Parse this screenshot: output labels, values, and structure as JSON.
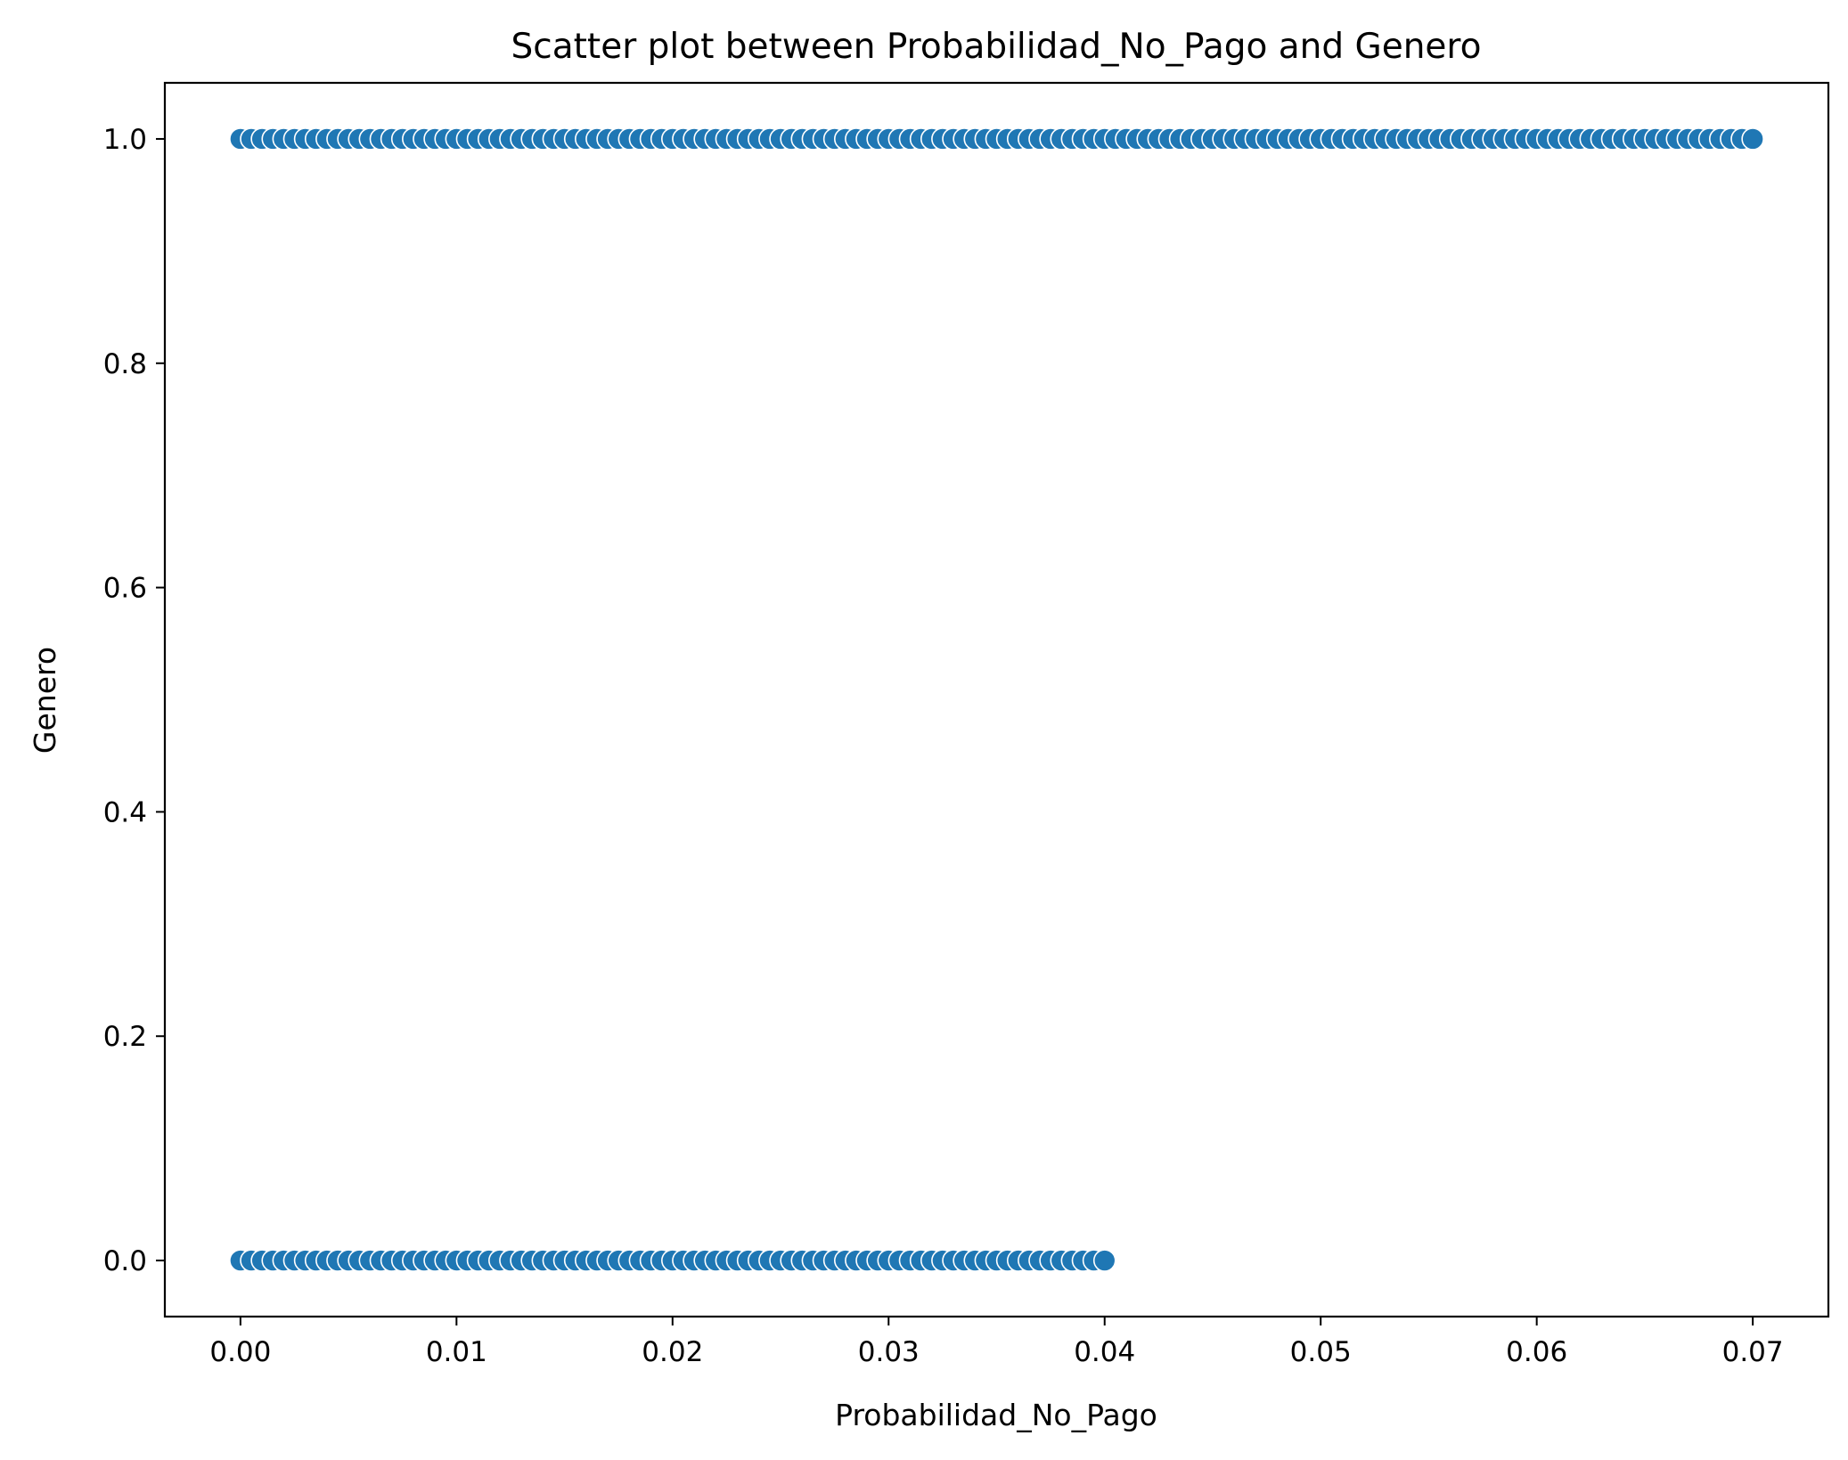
{
  "chart_data": {
    "type": "scatter",
    "title": "Scatter plot between Probabilidad_No_Pago and Genero",
    "xlabel": "Probabilidad_No_Pago",
    "ylabel": "Genero",
    "xlim": [
      -0.0035,
      0.0735
    ],
    "ylim": [
      -0.05,
      1.05
    ],
    "xticks": [
      0.0,
      0.01,
      0.02,
      0.03,
      0.04,
      0.05,
      0.06,
      0.07
    ],
    "xtick_labels": [
      "0.00",
      "0.01",
      "0.02",
      "0.03",
      "0.04",
      "0.05",
      "0.06",
      "0.07"
    ],
    "yticks": [
      0.0,
      0.2,
      0.4,
      0.6,
      0.8,
      1.0
    ],
    "ytick_labels": [
      "0.0",
      "0.2",
      "0.4",
      "0.6",
      "0.8",
      "1.0"
    ],
    "grid": false,
    "marker_color": "#1f77b4",
    "marker_edge_color": "#ffffff",
    "series": [
      {
        "y": 1,
        "x": [
          0.0,
          0.0005,
          0.001,
          0.0015,
          0.002,
          0.0025,
          0.003,
          0.0035,
          0.004,
          0.0045,
          0.005,
          0.0055,
          0.006,
          0.0065,
          0.007,
          0.0075,
          0.008,
          0.0085,
          0.009,
          0.0095,
          0.01,
          0.0105,
          0.011,
          0.0115,
          0.012,
          0.0125,
          0.013,
          0.0135,
          0.014,
          0.0145,
          0.015,
          0.0155,
          0.016,
          0.0165,
          0.017,
          0.0175,
          0.018,
          0.0185,
          0.019,
          0.0195,
          0.02,
          0.0205,
          0.021,
          0.0215,
          0.022,
          0.0225,
          0.023,
          0.0235,
          0.024,
          0.0245,
          0.025,
          0.0255,
          0.026,
          0.0265,
          0.027,
          0.0275,
          0.028,
          0.0285,
          0.029,
          0.0295,
          0.03,
          0.0305,
          0.031,
          0.0315,
          0.032,
          0.0325,
          0.033,
          0.0335,
          0.034,
          0.0345,
          0.035,
          0.0355,
          0.036,
          0.0365,
          0.037,
          0.0375,
          0.038,
          0.0385,
          0.039,
          0.0395,
          0.04,
          0.0405,
          0.041,
          0.0415,
          0.042,
          0.0425,
          0.043,
          0.0435,
          0.044,
          0.0445,
          0.045,
          0.0455,
          0.046,
          0.0465,
          0.047,
          0.0475,
          0.048,
          0.0485,
          0.049,
          0.0495,
          0.05,
          0.0505,
          0.051,
          0.0515,
          0.052,
          0.0525,
          0.053,
          0.0535,
          0.054,
          0.0545,
          0.055,
          0.0555,
          0.056,
          0.0565,
          0.057,
          0.0575,
          0.058,
          0.0585,
          0.059,
          0.0595,
          0.06,
          0.0605,
          0.061,
          0.0615,
          0.062,
          0.0625,
          0.063,
          0.0635,
          0.064,
          0.0645,
          0.065,
          0.0655,
          0.066,
          0.0665,
          0.067,
          0.0675,
          0.068,
          0.0685,
          0.069,
          0.0695,
          0.07
        ]
      },
      {
        "y": 0,
        "x": [
          0.0,
          0.0005,
          0.001,
          0.0015,
          0.002,
          0.0025,
          0.003,
          0.0035,
          0.004,
          0.0045,
          0.005,
          0.0055,
          0.006,
          0.0065,
          0.007,
          0.0075,
          0.008,
          0.0085,
          0.009,
          0.0095,
          0.01,
          0.0105,
          0.011,
          0.0115,
          0.012,
          0.0125,
          0.013,
          0.0135,
          0.014,
          0.0145,
          0.015,
          0.0155,
          0.016,
          0.0165,
          0.017,
          0.0175,
          0.018,
          0.0185,
          0.019,
          0.0195,
          0.02,
          0.0205,
          0.021,
          0.0215,
          0.022,
          0.0225,
          0.023,
          0.0235,
          0.024,
          0.0245,
          0.025,
          0.0255,
          0.026,
          0.0265,
          0.027,
          0.0275,
          0.028,
          0.0285,
          0.029,
          0.0295,
          0.03,
          0.0305,
          0.031,
          0.0315,
          0.032,
          0.0325,
          0.033,
          0.0335,
          0.034,
          0.0345,
          0.035,
          0.0355,
          0.036,
          0.0365,
          0.037,
          0.0375,
          0.038,
          0.0385,
          0.039,
          0.0395,
          0.04
        ]
      }
    ]
  }
}
